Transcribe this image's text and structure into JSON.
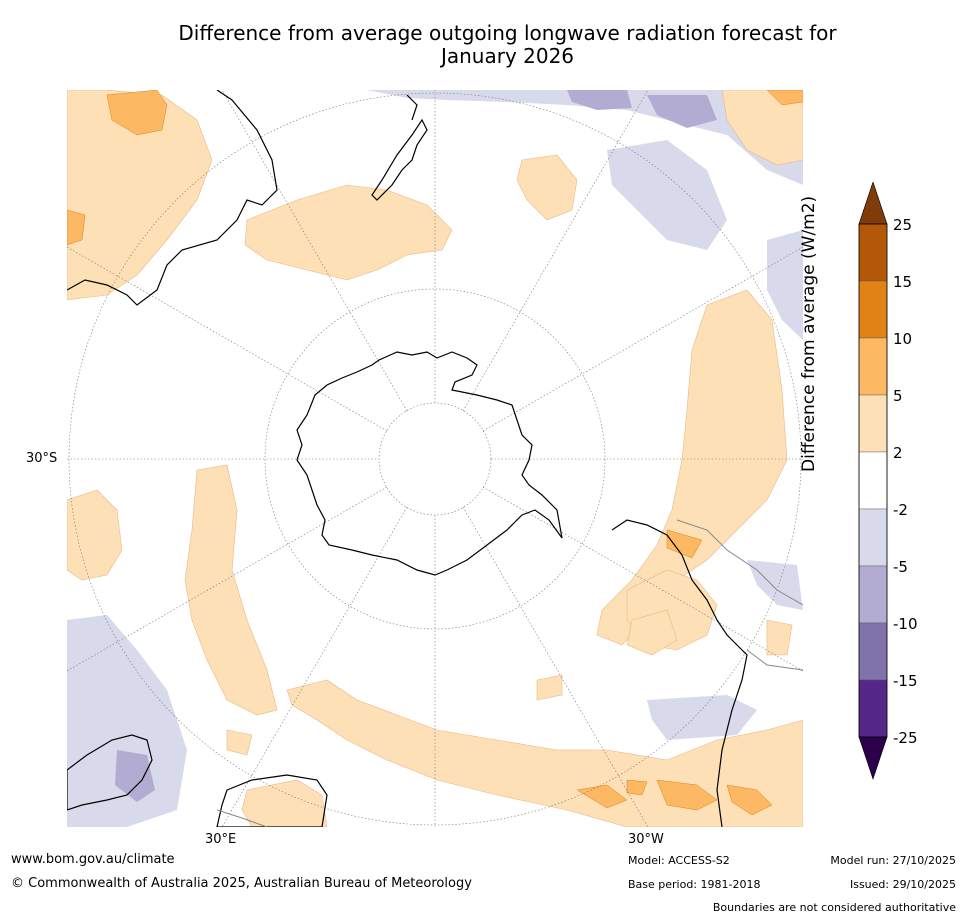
{
  "title_line1": "Difference from average outgoing longwave radiation forecast for",
  "title_line2": "January 2026",
  "map": {
    "lon_labels": [
      "30°E",
      "30°W"
    ],
    "lat_label": "30°S"
  },
  "legend": {
    "title": "Difference from average (W/m2)",
    "ticks": [
      "25",
      "15",
      "10",
      "5",
      "2",
      "-2",
      "-5",
      "-10",
      "-15",
      "-25"
    ],
    "colors": [
      "#7f3b08",
      "#b35806",
      "#e08214",
      "#fdb863",
      "#fee0b6",
      "#ffffff",
      "#d8daeb",
      "#b2abd2",
      "#8073ac",
      "#542788",
      "#2d004b"
    ]
  },
  "footer": {
    "url": "www.bom.gov.au/climate",
    "copyright": "© Commonwealth of Australia 2025, Australian Bureau of Meteorology",
    "model": "Model: ACCESS-S2",
    "base_period": "Base period: 1981-2018",
    "model_run": "Model run: 27/10/2025",
    "issued": "Issued: 29/10/2025",
    "disclaimer": "Boundaries are not considered authoritative"
  }
}
